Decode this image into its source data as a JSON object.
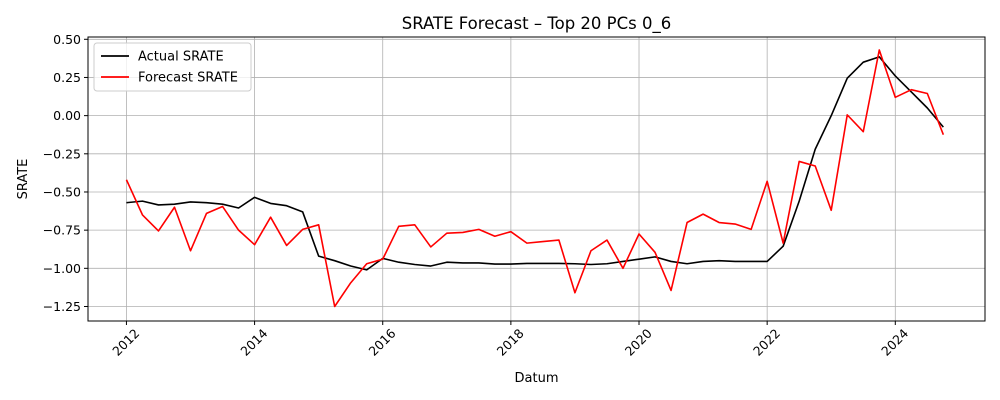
{
  "chart_data": {
    "type": "line",
    "title": "SRATE Forecast – Top 20 PCs 0_6",
    "xlabel": "Datum",
    "ylabel": "SRATE",
    "xlim": [
      2011.4,
      2025.4
    ],
    "ylim": [
      -1.345,
      0.515
    ],
    "x_ticks": [
      2012,
      2014,
      2016,
      2018,
      2020,
      2022,
      2024
    ],
    "x_tick_labels": [
      "2012",
      "2014",
      "2016",
      "2018",
      "2020",
      "2022",
      "2024"
    ],
    "y_ticks": [
      -1.25,
      -1.0,
      -0.75,
      -0.5,
      -0.25,
      0.0,
      0.25,
      0.5
    ],
    "y_tick_labels": [
      "−1.25",
      "−1.00",
      "−0.75",
      "−0.50",
      "−0.25",
      "0.00",
      "0.25",
      "0.50"
    ],
    "grid": true,
    "legend_position": "top-left",
    "x": [
      2012.0,
      2012.25,
      2012.5,
      2012.75,
      2013.0,
      2013.25,
      2013.5,
      2013.75,
      2014.0,
      2014.25,
      2014.5,
      2014.75,
      2015.0,
      2015.25,
      2015.5,
      2015.75,
      2016.0,
      2016.25,
      2016.5,
      2016.75,
      2017.0,
      2017.25,
      2017.5,
      2017.75,
      2018.0,
      2018.25,
      2018.5,
      2018.75,
      2019.0,
      2019.25,
      2019.5,
      2019.75,
      2020.0,
      2020.25,
      2020.5,
      2020.75,
      2021.0,
      2021.25,
      2021.5,
      2021.75,
      2022.0,
      2022.25,
      2022.5,
      2022.75,
      2023.0,
      2023.25,
      2023.5,
      2023.75,
      2024.0,
      2024.25,
      2024.5,
      2024.75
    ],
    "series": [
      {
        "name": "Actual SRATE",
        "color": "#000000",
        "values": [
          -0.57,
          -0.56,
          -0.585,
          -0.58,
          -0.565,
          -0.57,
          -0.58,
          -0.605,
          -0.535,
          -0.575,
          -0.59,
          -0.63,
          -0.92,
          -0.95,
          -0.985,
          -1.01,
          -0.935,
          -0.96,
          -0.975,
          -0.985,
          -0.96,
          -0.965,
          -0.965,
          -0.972,
          -0.972,
          -0.968,
          -0.968,
          -0.968,
          -0.97,
          -0.975,
          -0.97,
          -0.955,
          -0.94,
          -0.925,
          -0.955,
          -0.97,
          -0.955,
          -0.95,
          -0.955,
          -0.955,
          -0.955,
          -0.855,
          -0.56,
          -0.22,
          0.0,
          0.245,
          0.35,
          0.385,
          0.26,
          0.155,
          0.05,
          -0.075
        ]
      },
      {
        "name": "Forecast SRATE",
        "color": "#ff0000",
        "values": [
          -0.42,
          -0.65,
          -0.755,
          -0.6,
          -0.885,
          -0.64,
          -0.595,
          -0.75,
          -0.845,
          -0.665,
          -0.85,
          -0.745,
          -0.715,
          -1.25,
          -1.095,
          -0.97,
          -0.94,
          -0.725,
          -0.715,
          -0.86,
          -0.77,
          -0.765,
          -0.745,
          -0.79,
          -0.76,
          -0.835,
          -0.825,
          -0.815,
          -1.16,
          -0.885,
          -0.815,
          -1.0,
          -0.775,
          -0.895,
          -1.145,
          -0.7,
          -0.645,
          -0.7,
          -0.71,
          -0.745,
          -0.43,
          -0.835,
          -0.3,
          -0.33,
          -0.62,
          0.005,
          -0.105,
          0.43,
          0.12,
          0.17,
          0.145,
          -0.125
        ]
      }
    ]
  }
}
